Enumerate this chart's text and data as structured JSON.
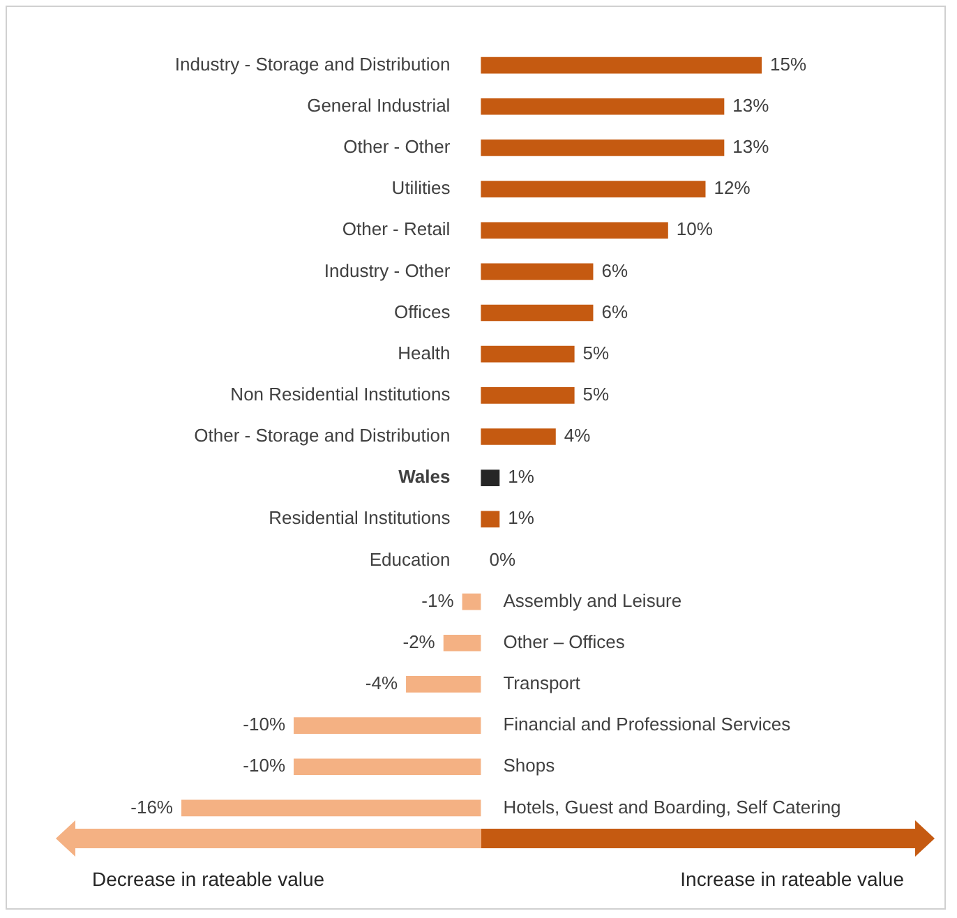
{
  "chart_data": {
    "type": "bar",
    "orientation": "horizontal",
    "categories": [
      "Industry - Storage and Distribution",
      "General Industrial",
      "Other - Other",
      "Utilities",
      "Other - Retail",
      "Industry - Other",
      "Offices",
      "Health",
      "Non Residential Institutions",
      "Other - Storage and Distribution",
      "Wales",
      "Residential Institutions",
      "Education",
      "Assembly and Leisure",
      "Other – Offices",
      "Transport",
      "Financial and Professional Services",
      "Shops",
      "Hotels, Guest and Boarding, Self Catering"
    ],
    "values": [
      15,
      13,
      13,
      12,
      10,
      6,
      6,
      5,
      5,
      4,
      1,
      1,
      0,
      -1,
      -2,
      -4,
      -10,
      -10,
      -16
    ],
    "value_labels": [
      "15%",
      "13%",
      "13%",
      "12%",
      "10%",
      "6%",
      "6%",
      "5%",
      "5%",
      "4%",
      "1%",
      "1%",
      "0%",
      "-1%",
      "-2%",
      "-4%",
      "-10%",
      "-10%",
      "-16%"
    ],
    "colors": [
      "#c55a11",
      "#c55a11",
      "#c55a11",
      "#c55a11",
      "#c55a11",
      "#c55a11",
      "#c55a11",
      "#c55a11",
      "#c55a11",
      "#c55a11",
      "#262626",
      "#c55a11",
      "#c55a11",
      "#f4b183",
      "#f4b183",
      "#f4b183",
      "#f4b183",
      "#f4b183",
      "#f4b183"
    ],
    "legend": false,
    "annotations": [
      "Decrease in rateable value",
      "Increase in rateable value"
    ]
  }
}
